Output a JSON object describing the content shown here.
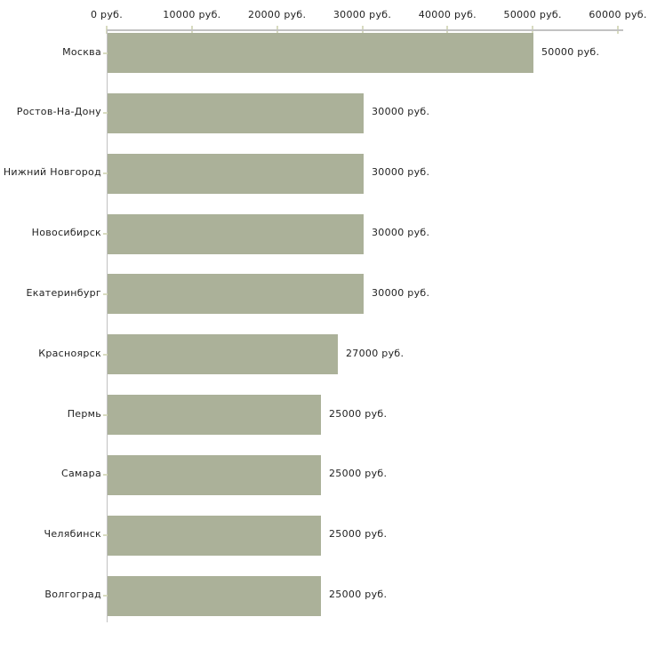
{
  "chart_data": {
    "type": "bar",
    "orientation": "horizontal",
    "categories": [
      "Москва",
      "Ростов-На-Дону",
      "Нижний Новгород",
      "Новосибирск",
      "Екатеринбург",
      "Красноярск",
      "Пермь",
      "Самара",
      "Челябинск",
      "Волгоград"
    ],
    "values": [
      50000,
      30000,
      30000,
      30000,
      30000,
      27000,
      25000,
      25000,
      25000,
      25000
    ],
    "bar_value_labels": [
      "50000 руб.",
      "30000 руб.",
      "30000 руб.",
      "30000 руб.",
      "30000 руб.",
      "27000 руб.",
      "25000 руб.",
      "25000 руб.",
      "25000 руб.",
      "25000 руб."
    ],
    "x_axis": {
      "position": "top",
      "range": [
        0,
        60000
      ],
      "ticks": [
        0,
        10000,
        20000,
        30000,
        40000,
        50000,
        60000
      ],
      "tick_labels": [
        "0 руб.",
        "10000 руб.",
        "20000 руб.",
        "30000 руб.",
        "40000 руб.",
        "50000 руб.",
        "60000 руб."
      ]
    },
    "grid": false,
    "legend": false,
    "colors": {
      "bar": "#abb199",
      "axis": "#c2c2c2",
      "tick": "#d8dbc0",
      "text": "#1f1f1f",
      "background": "#ffffff"
    }
  }
}
